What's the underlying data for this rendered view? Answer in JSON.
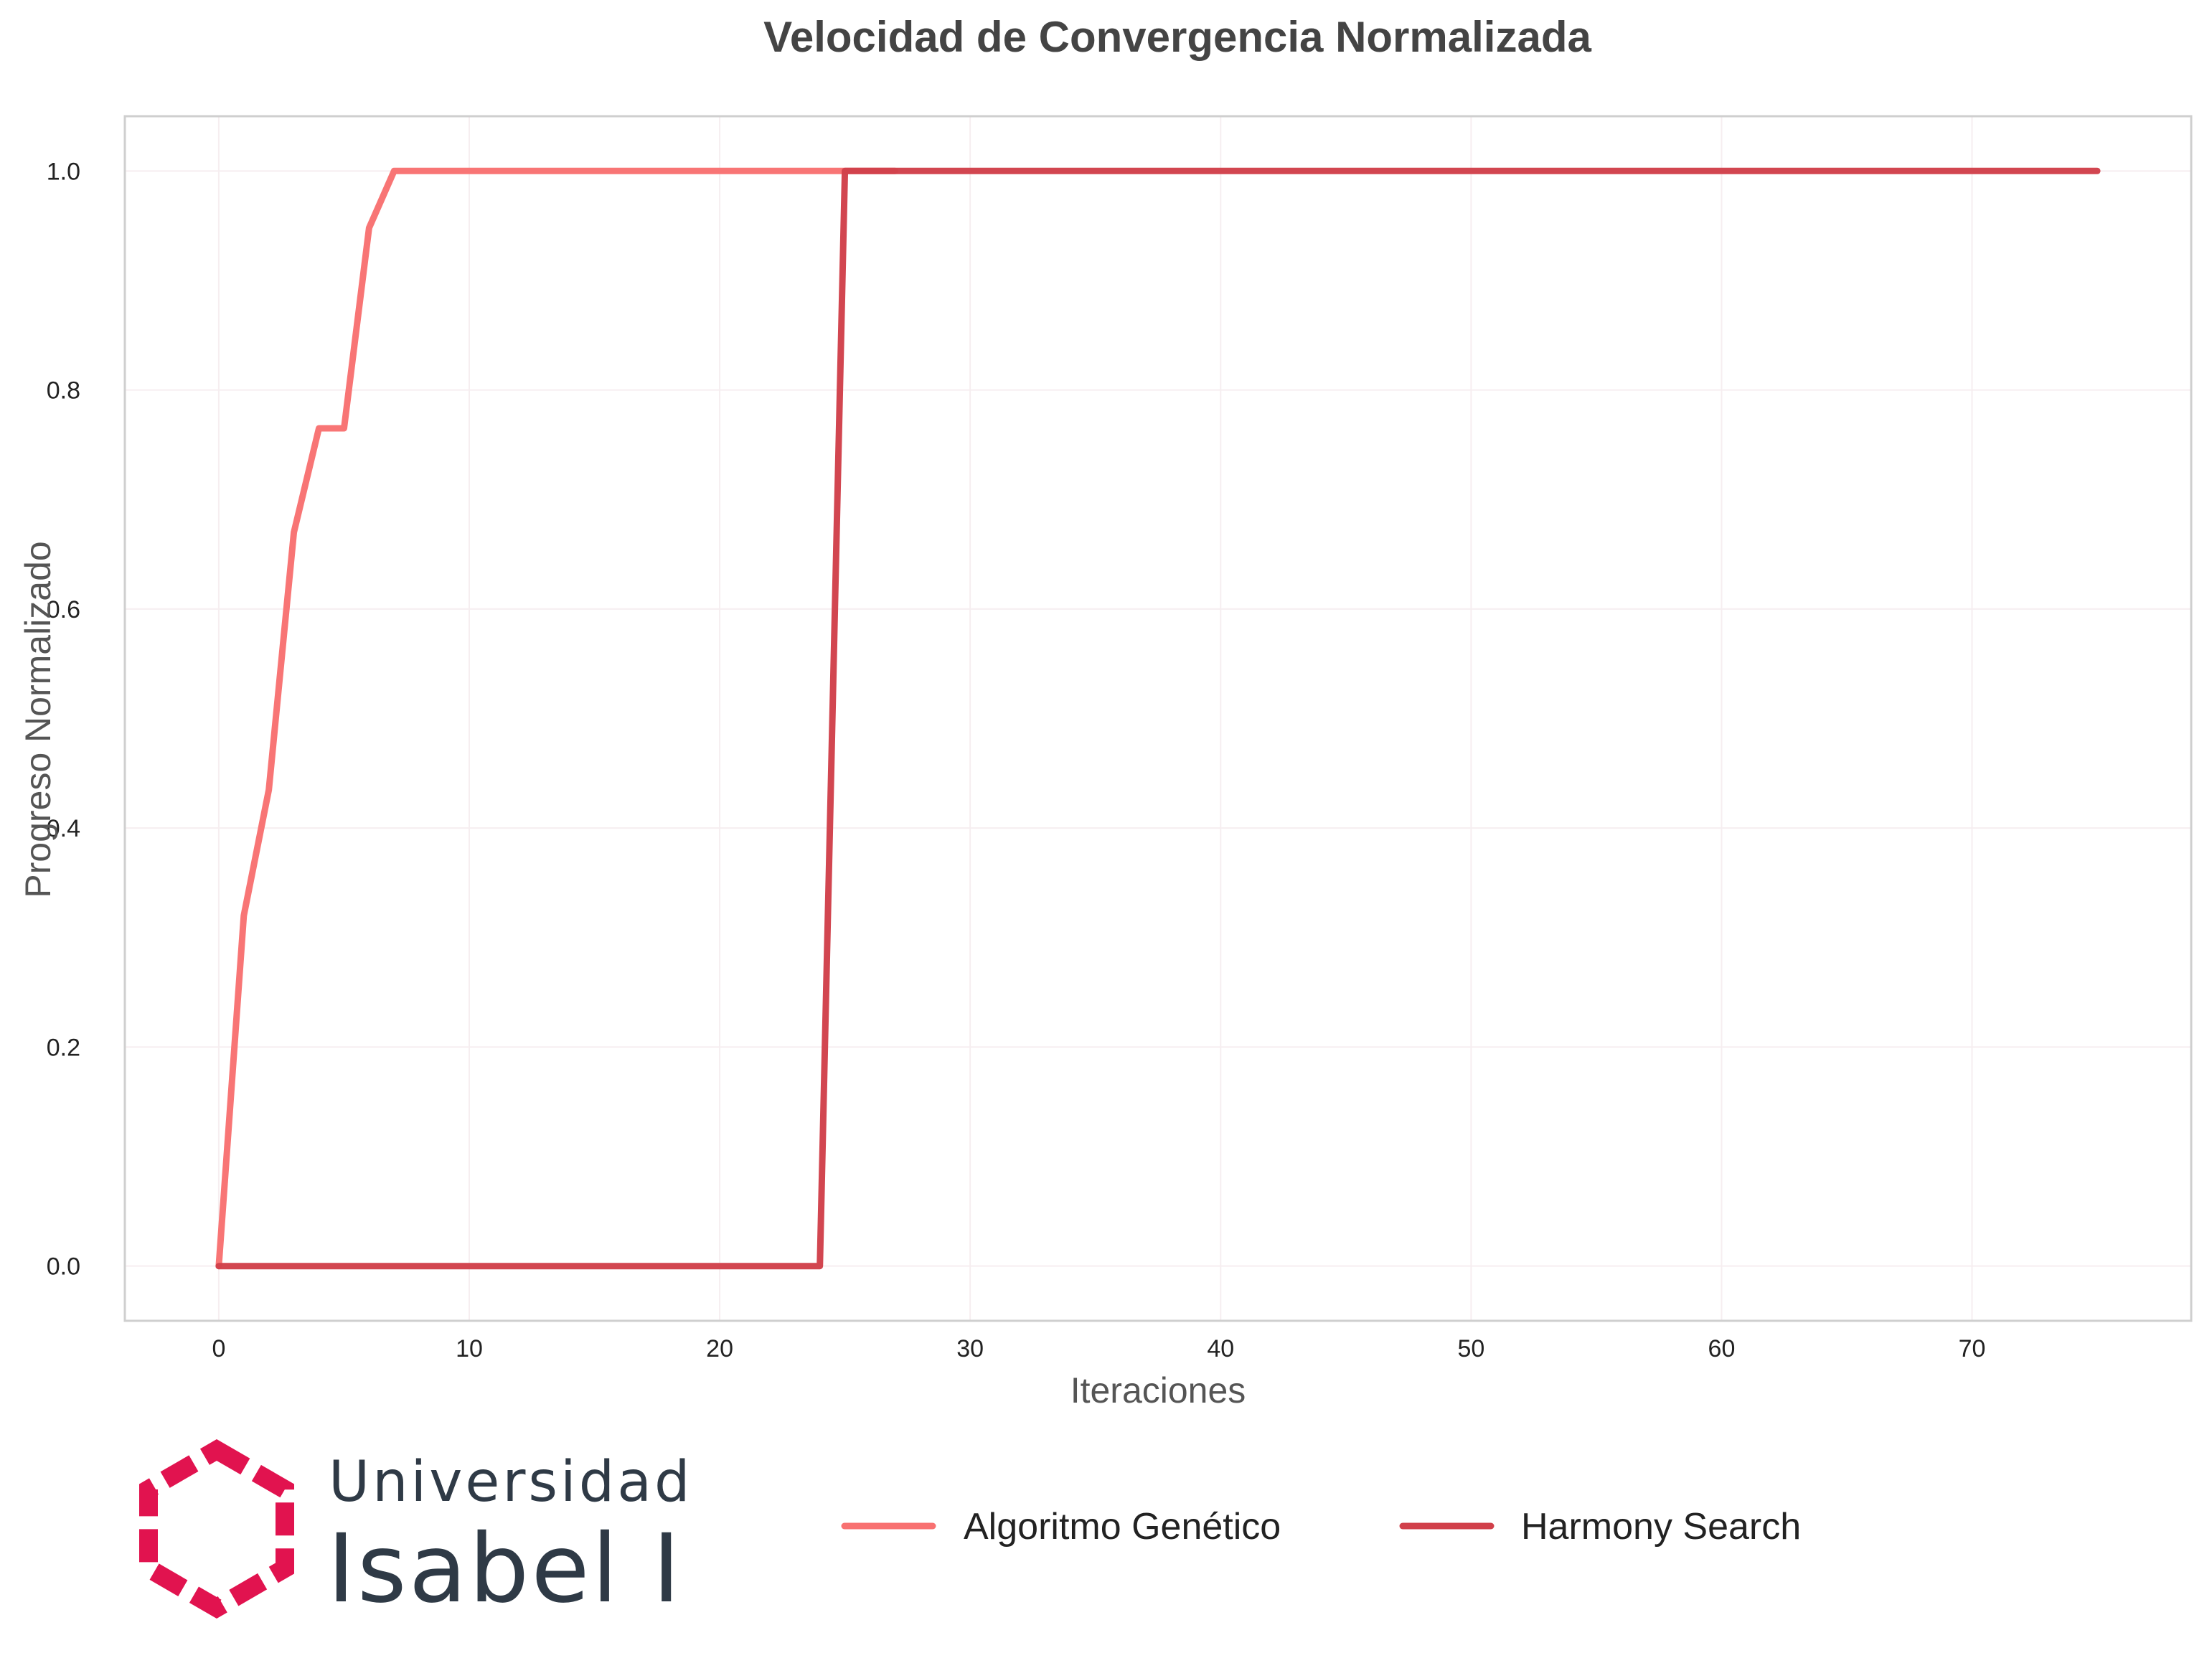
{
  "colors": {
    "ga": "#f87171",
    "hs": "#d1404a",
    "grid": "#f6eef0",
    "frame": "#cfcfcf",
    "logo_accent": "#e1134f",
    "logo_text": "#2f3a46"
  },
  "logo": {
    "line1": "Universidad",
    "line2": "Isabel I",
    "icon": "university-emblem-icon"
  },
  "chart_data": {
    "type": "line",
    "title": "Velocidad de Convergencia Normalizada",
    "xlabel": "Iteraciones",
    "ylabel": "Progreso Normalizado",
    "xlim": [
      -3.75,
      78.75
    ],
    "ylim": [
      -0.05,
      1.05
    ],
    "xticks": [
      "0",
      "10",
      "20",
      "30",
      "40",
      "50",
      "60",
      "70"
    ],
    "yticks": [
      "0.0",
      "0.2",
      "0.4",
      "0.6",
      "0.8",
      "1.0"
    ],
    "grid": true,
    "legend_position": "bottom",
    "series": [
      {
        "name": "Algoritmo Genético",
        "color": "#f87171",
        "x": [
          0,
          1,
          2,
          3,
          4,
          5,
          6,
          7,
          8,
          9,
          10,
          11,
          12,
          13,
          14,
          15,
          16,
          17,
          18,
          19,
          20,
          21,
          22,
          23,
          24,
          25,
          26,
          27
        ],
        "y": [
          0.0,
          0.32,
          0.435,
          0.67,
          0.765,
          0.765,
          0.948,
          1.0,
          1.0,
          1.0,
          1.0,
          1.0,
          1.0,
          1.0,
          1.0,
          1.0,
          1.0,
          1.0,
          1.0,
          1.0,
          1.0,
          1.0,
          1.0,
          1.0,
          1.0,
          1.0,
          1.0,
          1.0
        ]
      },
      {
        "name": "Harmony Search",
        "color": "#d1404a",
        "x": [
          0,
          5,
          10,
          15,
          20,
          24,
          25,
          30,
          35,
          40,
          45,
          50,
          55,
          60,
          65,
          70,
          75
        ],
        "y": [
          0.0,
          0.0,
          0.0,
          0.0,
          0.0,
          0.0,
          1.0,
          1.0,
          1.0,
          1.0,
          1.0,
          1.0,
          1.0,
          1.0,
          1.0,
          1.0,
          1.0
        ]
      }
    ]
  }
}
